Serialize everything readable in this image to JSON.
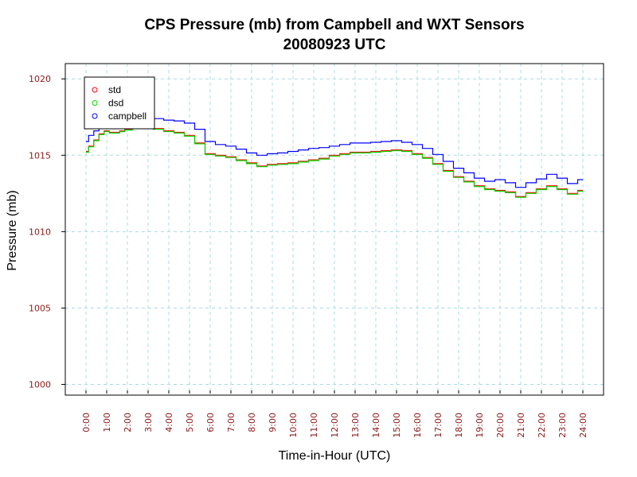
{
  "chart_data": {
    "type": "line",
    "title": "CPS Pressure (mb) from Campbell and WXT Sensors",
    "subtitle": "20080923  UTC",
    "xlabel": "Time-in-Hour (UTC)",
    "ylabel": "Pressure (mb)",
    "xlim": [
      -1,
      25
    ],
    "ylim": [
      999.3,
      1021
    ],
    "x_ticks": [
      0,
      1,
      2,
      3,
      4,
      5,
      6,
      7,
      8,
      9,
      10,
      11,
      12,
      13,
      14,
      15,
      16,
      17,
      18,
      19,
      20,
      21,
      22,
      23,
      24
    ],
    "x_tick_labels": [
      "0:00",
      "1:00",
      "2:00",
      "3:00",
      "4:00",
      "5:00",
      "6:00",
      "7:00",
      "8:00",
      "9:00",
      "10:00",
      "11:00",
      "12:00",
      "13:00",
      "14:00",
      "15:00",
      "16:00",
      "17:00",
      "18:00",
      "19:00",
      "20:00",
      "21:00",
      "22:00",
      "23:00",
      "24:00"
    ],
    "y_ticks": [
      1000,
      1005,
      1010,
      1015,
      1020
    ],
    "y_tick_labels": [
      "1000",
      "1005",
      "1010",
      "1015",
      "1020"
    ],
    "grid": true,
    "legend": "top-left",
    "series": [
      {
        "name": "std",
        "color": "#ff0000",
        "x": [
          0,
          0.25,
          0.5,
          0.75,
          1,
          1.25,
          1.5,
          1.75,
          2,
          2.5,
          3,
          3.5,
          4,
          4.5,
          5,
          5.5,
          6,
          6.5,
          7,
          7.5,
          8,
          8.5,
          9,
          9.5,
          10,
          10.5,
          11,
          11.5,
          12,
          12.5,
          13,
          13.5,
          14,
          14.5,
          15,
          15.5,
          16,
          16.5,
          17,
          17.5,
          18,
          18.5,
          19,
          19.5,
          20,
          20.5,
          21,
          21.5,
          22,
          22.5,
          23,
          23.5,
          24
        ],
        "values": [
          1015.25,
          1015.6,
          1016.0,
          1016.4,
          1016.6,
          1016.5,
          1016.5,
          1016.6,
          1016.7,
          1016.8,
          1016.85,
          1016.75,
          1016.6,
          1016.5,
          1016.3,
          1015.8,
          1015.1,
          1015.0,
          1014.9,
          1014.7,
          1014.5,
          1014.3,
          1014.4,
          1014.45,
          1014.5,
          1014.6,
          1014.7,
          1014.8,
          1015.0,
          1015.1,
          1015.2,
          1015.2,
          1015.25,
          1015.3,
          1015.35,
          1015.3,
          1015.1,
          1014.85,
          1014.45,
          1014.0,
          1013.6,
          1013.3,
          1013.0,
          1012.8,
          1012.7,
          1012.6,
          1012.3,
          1012.55,
          1012.8,
          1013.0,
          1012.8,
          1012.5,
          1012.7
        ]
      },
      {
        "name": "dsd",
        "color": "#00dd00",
        "x": [
          0,
          0.25,
          0.5,
          0.75,
          1,
          1.25,
          1.5,
          1.75,
          2,
          2.5,
          3,
          3.5,
          4,
          4.5,
          5,
          5.5,
          6,
          6.5,
          7,
          7.5,
          8,
          8.5,
          9,
          9.5,
          10,
          10.5,
          11,
          11.5,
          12,
          12.5,
          13,
          13.5,
          14,
          14.5,
          15,
          15.5,
          16,
          16.5,
          17,
          17.5,
          18,
          18.5,
          19,
          19.5,
          20,
          20.5,
          21,
          21.5,
          22,
          22.5,
          23,
          23.5,
          24
        ],
        "values": [
          1015.2,
          1015.55,
          1015.95,
          1016.35,
          1016.55,
          1016.45,
          1016.45,
          1016.55,
          1016.65,
          1016.75,
          1016.8,
          1016.7,
          1016.55,
          1016.45,
          1016.25,
          1015.75,
          1015.05,
          1014.95,
          1014.85,
          1014.65,
          1014.45,
          1014.25,
          1014.35,
          1014.4,
          1014.45,
          1014.55,
          1014.65,
          1014.75,
          1014.95,
          1015.05,
          1015.15,
          1015.15,
          1015.2,
          1015.25,
          1015.3,
          1015.25,
          1015.05,
          1014.8,
          1014.4,
          1013.95,
          1013.55,
          1013.25,
          1012.95,
          1012.75,
          1012.65,
          1012.55,
          1012.25,
          1012.5,
          1012.75,
          1012.95,
          1012.75,
          1012.45,
          1012.65
        ]
      },
      {
        "name": "campbell",
        "color": "#0000ff",
        "x": [
          0,
          0.25,
          0.5,
          0.75,
          1,
          1.25,
          1.5,
          1.75,
          2,
          2.5,
          3,
          3.5,
          4,
          4.5,
          5,
          5.5,
          6,
          6.5,
          7,
          7.5,
          8,
          8.5,
          9,
          9.5,
          10,
          10.5,
          11,
          11.5,
          12,
          12.5,
          13,
          13.5,
          14,
          14.5,
          15,
          15.5,
          16,
          16.5,
          17,
          17.5,
          18,
          18.5,
          19,
          19.5,
          20,
          20.5,
          21,
          21.5,
          22,
          22.5,
          23,
          23.5,
          24
        ],
        "values": [
          1015.9,
          1016.3,
          1016.6,
          1016.9,
          1017.0,
          1016.9,
          1016.9,
          1017.0,
          1017.2,
          1017.4,
          1017.5,
          1017.4,
          1017.3,
          1017.25,
          1017.1,
          1016.7,
          1015.9,
          1015.7,
          1015.6,
          1015.4,
          1015.15,
          1015.0,
          1015.1,
          1015.15,
          1015.25,
          1015.35,
          1015.45,
          1015.5,
          1015.6,
          1015.7,
          1015.8,
          1015.8,
          1015.85,
          1015.9,
          1015.95,
          1015.85,
          1015.7,
          1015.45,
          1015.05,
          1014.6,
          1014.15,
          1013.85,
          1013.5,
          1013.3,
          1013.4,
          1013.2,
          1012.9,
          1013.2,
          1013.45,
          1013.75,
          1013.5,
          1013.15,
          1013.4
        ]
      }
    ]
  }
}
